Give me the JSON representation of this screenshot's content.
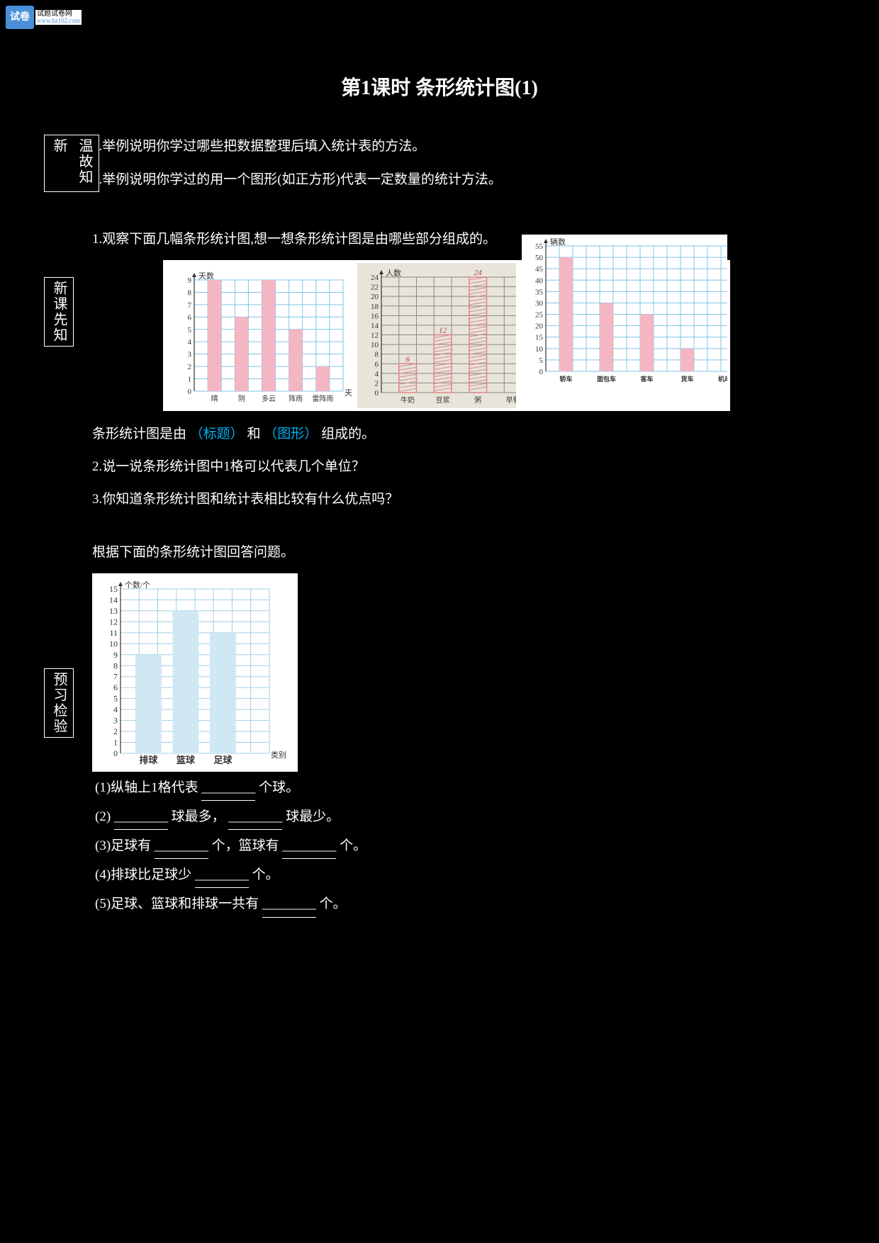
{
  "logo": {
    "box": "试卷",
    "line1": "试题试卷网",
    "line2": "www.hz102.com"
  },
  "title": "第1课时 条形统计图(1)",
  "sections": {
    "wengu": {
      "label": "温故知新",
      "p1": "1.举例说明你学过哪些把数据整理后填入统计表的方法。",
      "p2": "2.举例说明你学过的用一个图形(如正方形)代表一定数量的统计方法。"
    },
    "xinke": {
      "label": "新课先知",
      "intro": "1.观察下面几幅条形统计图,想一想条形统计图是由哪些部分组成的。",
      "chart1": {
        "type": "bar",
        "ylabel": "天数",
        "xlabel": "天气",
        "categories": [
          "晴",
          "阴",
          "多云",
          "阵雨",
          "雷阵雨"
        ],
        "values": [
          9,
          6,
          9,
          5,
          2
        ],
        "ylim": [
          0,
          9
        ],
        "ytick_step": 1,
        "bar_color": "#f4b6c2",
        "grid_color": "#7fc4e8",
        "bg": "#ffffff",
        "text_color": "#333333"
      },
      "chart2": {
        "type": "bar",
        "ylabel": "人数",
        "categories": [
          "牛奶",
          "豆浆",
          "粥",
          "早餐"
        ],
        "values": [
          6,
          12,
          24,
          0
        ],
        "value_labels": [
          "6",
          "12",
          "24",
          ""
        ],
        "ylim": [
          0,
          24
        ],
        "ytick_step": 2,
        "bar_fill": "hatched",
        "bar_color": "#d88",
        "grid_color": "#888888",
        "bg": "#e8e4da",
        "text_color": "#333333"
      },
      "chart3": {
        "type": "bar",
        "ylabel": "辆数",
        "categories": [
          "轿车",
          "面包车",
          "客车",
          "货车",
          "机动车"
        ],
        "values": [
          50,
          30,
          25,
          10,
          0
        ],
        "ylim": [
          0,
          55
        ],
        "ytick_step": 5,
        "bar_color": "#f4b6c2",
        "grid_color": "#7fc4e8",
        "bg": "#ffffff",
        "text_color": "#333333"
      },
      "compose_prefix": "条形统计图是由",
      "compose_parts": [
        "（标题）",
        "和",
        "（图形）"
      ],
      "compose_suffix": "组成的。",
      "p3": "2.说一说条形统计图中1格可以代表几个单位？",
      "p4": "3.你知道条形统计图和统计表相比较有什么优点吗？"
    },
    "yuxi": {
      "label": "预习检验",
      "lead": "根据下面的条形统计图回答问题。",
      "chart": {
        "type": "bar",
        "ylabel": "个数/个",
        "xlabel": "类别",
        "categories": [
          "排球",
          "篮球",
          "足球"
        ],
        "values": [
          9,
          13,
          11
        ],
        "ylim": [
          0,
          15
        ],
        "ytick_step": 1,
        "bar_color": "#cfe8f3",
        "grid_color": "#9fd0e8",
        "bg": "#ffffff",
        "text_color": "#333333"
      },
      "q1_pre": "(1)纵轴上1格代表",
      "q1_post": "个球。",
      "q2_pre": "(2)",
      "q2_mid": "球最多，",
      "q2_post": "球最少。",
      "q3_pre": "(3)足球有",
      "q3_mid": "个，篮球有",
      "q3_post": "个。",
      "q4_pre": "(4)排球比足球少",
      "q4_post": "个。",
      "q5_pre": "(5)足球、篮球和排球一共有",
      "q5_post": "个。"
    }
  },
  "blank_line": "________"
}
